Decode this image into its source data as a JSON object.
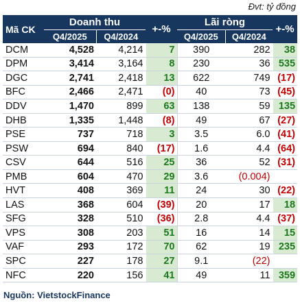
{
  "unit_note": "Đvt: tỷ đồng",
  "header": {
    "code": "Mã CK",
    "revenue": "Doanh thu",
    "profit": "Lãi ròng",
    "pct": "+-%",
    "q_current": "Q4/2025",
    "q_prev": "Q4/2024"
  },
  "rows": [
    {
      "code": "DCM",
      "rev25": "4,528",
      "rev24": "4,214",
      "rev_pct": "7",
      "np25": "390",
      "np24": "282",
      "np_pct": "38"
    },
    {
      "code": "DPM",
      "rev25": "3,414",
      "rev24": "3,164",
      "rev_pct": "8",
      "np25": "230",
      "np24": "36",
      "np_pct": "535"
    },
    {
      "code": "DGC",
      "rev25": "2,741",
      "rev24": "2,418",
      "rev_pct": "13",
      "np25": "622",
      "np24": "749",
      "np_pct": "(17)"
    },
    {
      "code": "BFC",
      "rev25": "2,466",
      "rev24": "2,471",
      "rev_pct": "(0)",
      "np25": "40",
      "np24": "73",
      "np_pct": "(45)"
    },
    {
      "code": "DDV",
      "rev25": "1,470",
      "rev24": "899",
      "rev_pct": "63",
      "np25": "138",
      "np24": "59",
      "np_pct": "135"
    },
    {
      "code": "DHB",
      "rev25": "1,335",
      "rev24": "1,448",
      "rev_pct": "(8)",
      "np25": "49",
      "np24": "67",
      "np_pct": "(27)"
    },
    {
      "code": "PSE",
      "rev25": "737",
      "rev24": "718",
      "rev_pct": "3",
      "np25": "3.5",
      "np24": "6.0",
      "np_pct": "(41)"
    },
    {
      "code": "PSW",
      "rev25": "694",
      "rev24": "840",
      "rev_pct": "(17)",
      "np25": "1.6",
      "np24": "4.4",
      "np_pct": "(64)"
    },
    {
      "code": "CSV",
      "rev25": "644",
      "rev24": "516",
      "rev_pct": "25",
      "np25": "36",
      "np24": "52",
      "np_pct": "(31)"
    },
    {
      "code": "PMB",
      "rev25": "604",
      "rev24": "470",
      "rev_pct": "29",
      "np25": "3.6",
      "np24": "(0.004)",
      "np_pct": ""
    },
    {
      "code": "HVT",
      "rev25": "408",
      "rev24": "369",
      "rev_pct": "11",
      "np25": "24",
      "np24": "30",
      "np_pct": "(22)"
    },
    {
      "code": "LAS",
      "rev25": "368",
      "rev24": "604",
      "rev_pct": "(39)",
      "np25": "20",
      "np24": "17",
      "np_pct": "18"
    },
    {
      "code": "SFG",
      "rev25": "328",
      "rev24": "510",
      "rev_pct": "(36)",
      "np25": "2.8",
      "np24": "4.4",
      "np_pct": "(37)"
    },
    {
      "code": "VPS",
      "rev25": "308",
      "rev24": "203",
      "rev_pct": "51",
      "np25": "16",
      "np24": "14",
      "np_pct": "15"
    },
    {
      "code": "VAF",
      "rev25": "293",
      "rev24": "172",
      "rev_pct": "70",
      "np25": "62",
      "np24": "19",
      "np_pct": "235"
    },
    {
      "code": "SPC",
      "rev25": "227",
      "rev24": "178",
      "rev_pct": "27",
      "np25": "9.1",
      "np24": "(22)",
      "np_pct": ""
    },
    {
      "code": "NFC",
      "rev25": "220",
      "rev24": "156",
      "rev_pct": "41",
      "np25": "49",
      "np24": "11",
      "np_pct": "359"
    }
  ],
  "source": "Nguồn: VietstockFinance",
  "colors": {
    "header_bg": "#17375e",
    "positive_bg": "#d9ead3",
    "positive_text": "#1a7a1a",
    "negative_text": "#c00000"
  }
}
